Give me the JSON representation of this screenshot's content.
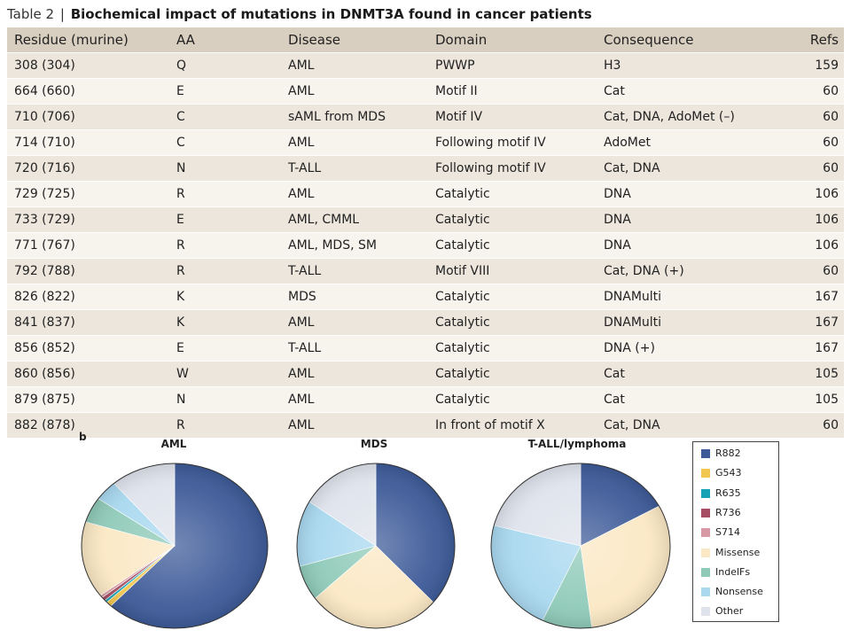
{
  "caption": {
    "label": "Table 2",
    "separator": "|",
    "title": "Biochemical impact of mutations in DNMT3A found in cancer patients"
  },
  "table": {
    "headers": [
      "Residue (murine)",
      "AA",
      "Disease",
      "Domain",
      "Consequence",
      "Refs"
    ],
    "rows": [
      [
        "308 (304)",
        "Q",
        "AML",
        "PWWP",
        "H3",
        "159"
      ],
      [
        "664 (660)",
        "E",
        "AML",
        "Motif II",
        "Cat",
        "60"
      ],
      [
        "710 (706)",
        "C",
        "sAML from MDS",
        "Motif IV",
        "Cat, DNA, AdoMet (–)",
        "60"
      ],
      [
        "714 (710)",
        "C",
        "AML",
        "Following motif IV",
        "AdoMet",
        "60"
      ],
      [
        "720 (716)",
        "N",
        "T-ALL",
        "Following motif IV",
        "Cat, DNA",
        "60"
      ],
      [
        "729 (725)",
        "R",
        "AML",
        "Catalytic",
        "DNA",
        "106"
      ],
      [
        "733 (729)",
        "E",
        "AML, CMML",
        "Catalytic",
        "DNA",
        "106"
      ],
      [
        "771 (767)",
        "R",
        "AML, MDS, SM",
        "Catalytic",
        "DNA",
        "106"
      ],
      [
        "792 (788)",
        "R",
        "T-ALL",
        "Motif VIII",
        "Cat, DNA (+)",
        "60"
      ],
      [
        "826 (822)",
        "K",
        "MDS",
        "Catalytic",
        "DNAMulti",
        "167"
      ],
      [
        "841 (837)",
        "K",
        "AML",
        "Catalytic",
        "DNAMulti",
        "167"
      ],
      [
        "856 (852)",
        "E",
        "T-ALL",
        "Catalytic",
        "DNA (+)",
        "167"
      ],
      [
        "860 (856)",
        "W",
        "AML",
        "Catalytic",
        "Cat",
        "105"
      ],
      [
        "879 (875)",
        "N",
        "AML",
        "Catalytic",
        "Cat",
        "105"
      ],
      [
        "882 (878)",
        "R",
        "AML",
        "In front of motif X",
        "Cat, DNA",
        "60"
      ]
    ]
  },
  "figure": {
    "panel_label": "b"
  },
  "chart_data": [
    {
      "type": "pie",
      "title": "AML",
      "categories": [
        "R882",
        "G543",
        "R635",
        "R736",
        "S714",
        "Missense",
        "IndelFs",
        "Nonsense",
        "Other"
      ],
      "values": [
        62,
        1,
        0.5,
        0.7,
        0.5,
        15,
        5,
        4,
        11.3
      ]
    },
    {
      "type": "pie",
      "title": "MDS",
      "categories": [
        "R882",
        "G543",
        "R635",
        "R736",
        "S714",
        "Missense",
        "IndelFs",
        "Nonsense",
        "Other"
      ],
      "values": [
        37,
        0,
        0,
        0,
        0,
        27,
        7,
        13,
        16
      ]
    },
    {
      "type": "pie",
      "title": "T-ALL/lymphoma",
      "categories": [
        "R882",
        "G543",
        "R635",
        "R736",
        "S714",
        "Missense",
        "IndelFs",
        "Nonsense",
        "Other"
      ],
      "values": [
        17,
        0,
        0,
        0,
        0,
        31,
        9,
        22,
        21
      ]
    }
  ],
  "legend": {
    "items": [
      {
        "label": "R882",
        "color": "#3d5a98"
      },
      {
        "label": "G543",
        "color": "#f2c74f"
      },
      {
        "label": "R635",
        "color": "#16a3b5"
      },
      {
        "label": "R736",
        "color": "#a64c63"
      },
      {
        "label": "S714",
        "color": "#d79aa4"
      },
      {
        "label": "Missense",
        "color": "#fbe8c4"
      },
      {
        "label": "IndelFs",
        "color": "#8fcab8"
      },
      {
        "label": "Nonsense",
        "color": "#a9d8ef"
      },
      {
        "label": "Other",
        "color": "#dfe3ec"
      }
    ]
  }
}
